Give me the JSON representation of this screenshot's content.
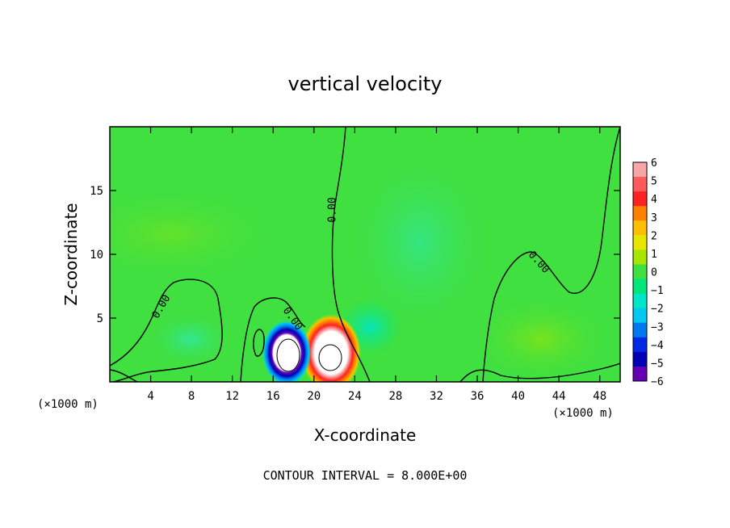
{
  "chart_data": {
    "type": "heatmap",
    "title": "vertical velocity",
    "xlabel": "X-coordinate",
    "ylabel": "Z-coordinate",
    "x_unit_label": "(×1000 m)",
    "x_ticks": [
      4,
      8,
      12,
      16,
      20,
      24,
      28,
      32,
      36,
      40,
      44,
      48
    ],
    "y_ticks": [
      5,
      10,
      15
    ],
    "xlim": [
      0,
      50
    ],
    "ylim": [
      0,
      20
    ],
    "colorbar": {
      "ticks": [
        6,
        5,
        4,
        3,
        2,
        1,
        0,
        -1,
        -2,
        -3,
        -4,
        -5,
        -6
      ],
      "colors": [
        "#f7a5a5",
        "#ff5a5a",
        "#ff2222",
        "#ff8000",
        "#ffbf00",
        "#e6e600",
        "#a6e600",
        "#40e040",
        "#00e67a",
        "#00e6c8",
        "#00c8f0",
        "#0078f0",
        "#0028e6",
        "#0000b4",
        "#6400b4"
      ]
    },
    "contour_label": "0.00",
    "contour_interval_text": "CONTOUR INTERVAL = 8.000E+00",
    "features": [
      {
        "kind": "updraft",
        "x": 21.5,
        "z": 2.0,
        "peak": 6
      },
      {
        "kind": "downdraft",
        "x": 17.3,
        "z": 2.0,
        "peak": -6
      }
    ]
  }
}
